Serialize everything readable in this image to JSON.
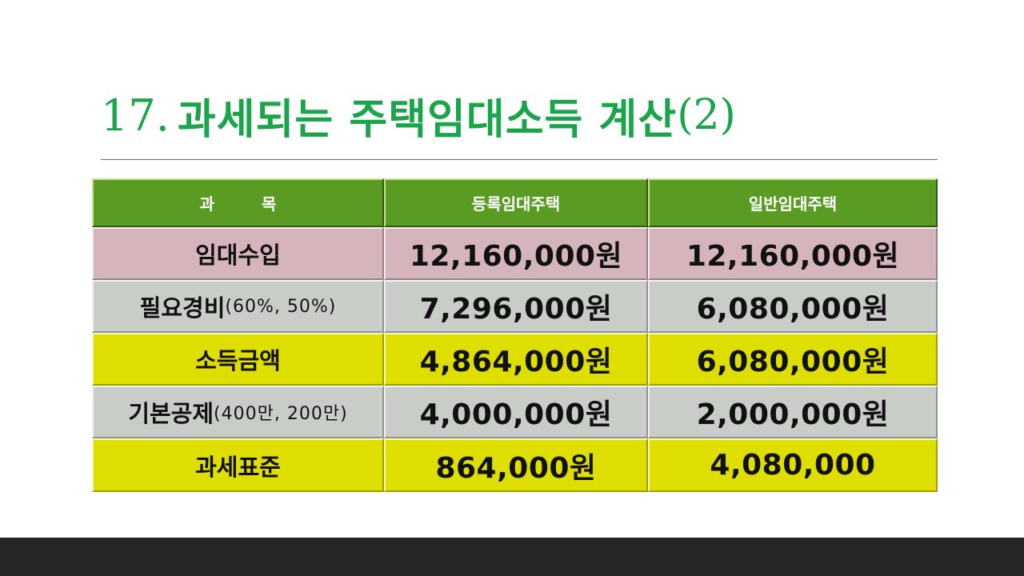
{
  "title": {
    "number": "17.",
    "text": "과세되는 주택임대소득 계산",
    "suffix": "(2)"
  },
  "table": {
    "headers": [
      "과 목",
      "등록임대주택",
      "일반임대주택"
    ],
    "rows": [
      {
        "label": "임대수입",
        "sub": "",
        "registered": "12,160,000원",
        "general": "12,160,000원",
        "color": "#d5b5bb"
      },
      {
        "label": "필요경비",
        "sub": "(60%, 50%)",
        "registered": "7,296,000원",
        "general": "6,080,000원",
        "color": "#c9cdc8"
      },
      {
        "label": "소득금액",
        "sub": "",
        "registered": "4,864,000원",
        "general": "6,080,000원",
        "color": "#dede00"
      },
      {
        "label": "기본공제",
        "sub": "(400만, 200만)",
        "registered": "4,000,000원",
        "general": "2,000,000원",
        "color": "#c9cdc8"
      },
      {
        "label": "과세표준",
        "sub": "",
        "registered": "864,000원",
        "general": "4,080,000",
        "color": "#dede00"
      }
    ]
  },
  "colors": {
    "title": "#1aa54b",
    "header": "#5a9c23",
    "bottom_bar": "#262626"
  }
}
